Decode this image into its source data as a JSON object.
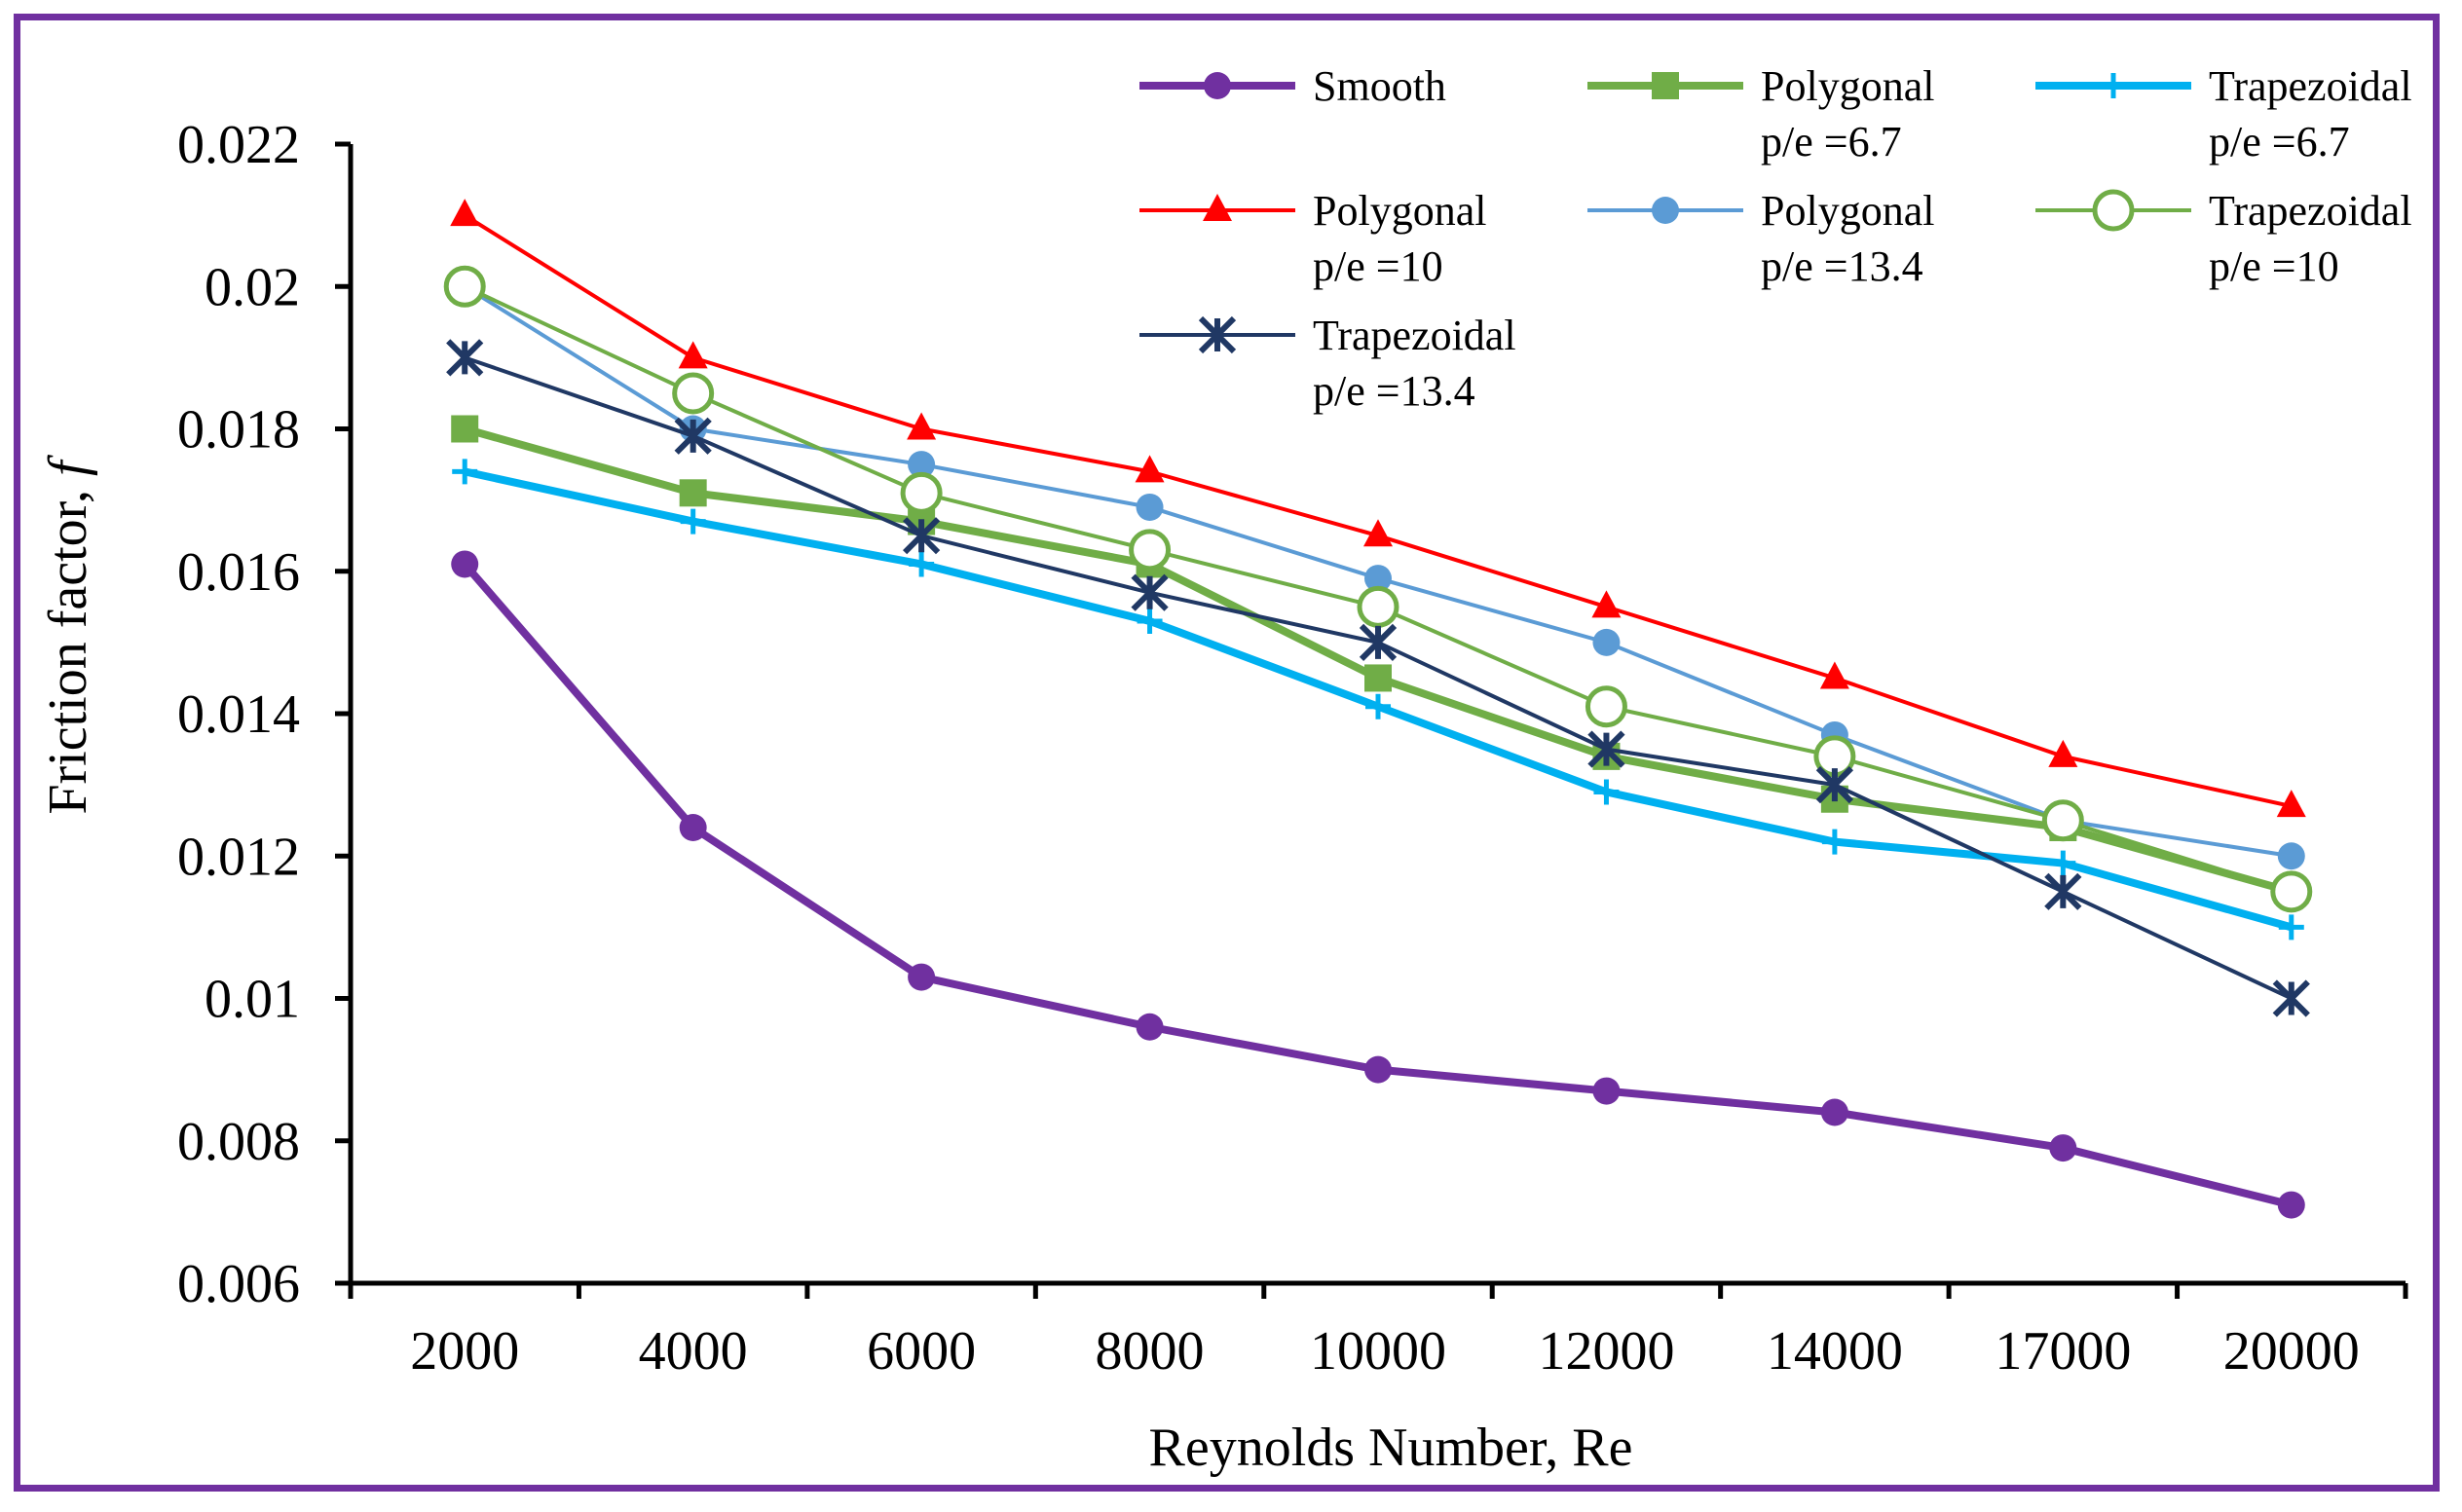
{
  "chart_data": {
    "type": "line",
    "title": "",
    "xlabel": "Reynolds Number, Re",
    "ylabel_prefix": "Friction factor, ",
    "ylabel_symbol": "f",
    "categories": [
      "2000",
      "4000",
      "6000",
      "8000",
      "10000",
      "12000",
      "14000",
      "17000",
      "20000"
    ],
    "ylim": [
      0.006,
      0.022
    ],
    "yticks": [
      0.006,
      0.008,
      0.01,
      0.012,
      0.014,
      0.016,
      0.018,
      0.02,
      0.022
    ],
    "ytick_labels": [
      "0.006",
      "0.008",
      "0.01",
      "0.012",
      "0.014",
      "0.016",
      "0.018",
      "0.02",
      "0.022"
    ],
    "grid": false,
    "legend_position": "top-right",
    "series": [
      {
        "name": "Smooth",
        "line1": "Smooth",
        "line2": "",
        "color": "#7030a0",
        "marker": "circle-filled",
        "weight": "thick",
        "values": [
          0.0161,
          0.0124,
          0.0103,
          0.0096,
          0.009,
          0.0087,
          0.0084,
          0.0079,
          0.0071
        ]
      },
      {
        "name": "Polygonal p/e =6.7",
        "line1": "Polygonal",
        "line2": "p/e =6.7",
        "color": "#70ad47",
        "marker": "square",
        "weight": "thick",
        "values": [
          0.018,
          0.0171,
          0.0167,
          0.0161,
          0.0145,
          0.0134,
          0.0128,
          0.0124,
          0.0115
        ]
      },
      {
        "name": "Trapezoidal p/e =6.7",
        "line1": "Trapezoidal",
        "line2": "p/e =6.7",
        "color": "#00b0f0",
        "marker": "plus",
        "weight": "thick",
        "values": [
          0.0174,
          0.0167,
          0.0161,
          0.0153,
          0.0141,
          0.0129,
          0.0122,
          0.0119,
          0.011
        ]
      },
      {
        "name": "Polygonal p/e =10",
        "line1": "Polygonal",
        "line2": "p/e =10",
        "color": "#ff0000",
        "marker": "triangle",
        "weight": "thin",
        "values": [
          0.021,
          0.019,
          0.018,
          0.0174,
          0.0165,
          0.0155,
          0.0145,
          0.0134,
          0.0127
        ]
      },
      {
        "name": "Polygonal p/e =13.4",
        "line1": "Polygonal",
        "line2": "p/e =13.4",
        "color": "#5b9bd5",
        "marker": "circle-filled",
        "weight": "thin",
        "values": [
          0.02,
          0.018,
          0.0175,
          0.0169,
          0.0159,
          0.015,
          0.0137,
          0.0125,
          0.012
        ]
      },
      {
        "name": "Trapezoidal p/e =10",
        "line1": "Trapezoidal",
        "line2": "p/e =10",
        "color": "#70ad47",
        "marker": "circle-open",
        "weight": "thin",
        "values": [
          0.02,
          0.0185,
          0.0171,
          0.0163,
          0.0155,
          0.0141,
          0.0134,
          0.0125,
          0.0115
        ]
      },
      {
        "name": "Trapezoidal p/e =13.4",
        "line1": "Trapezoidal",
        "line2": "p/e =13.4",
        "color": "#203864",
        "marker": "asterisk",
        "weight": "thin",
        "values": [
          0.019,
          0.0179,
          0.0165,
          0.0157,
          0.015,
          0.0135,
          0.013,
          0.0115,
          0.01
        ]
      }
    ]
  }
}
